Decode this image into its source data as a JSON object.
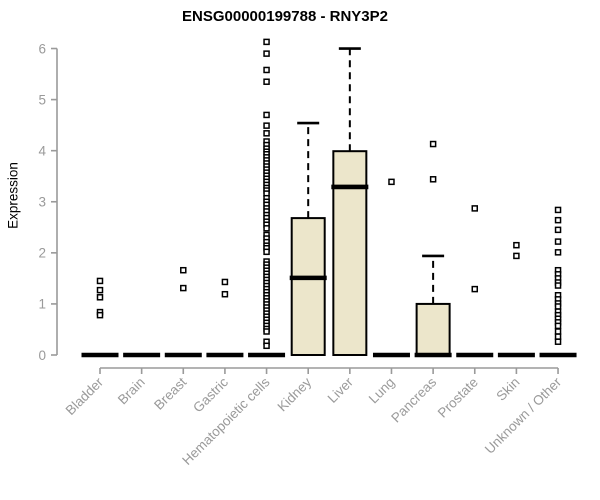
{
  "chart_data": {
    "type": "boxplot",
    "title": "ENSG00000199788 - RNY3P2",
    "ylabel": "Expression",
    "xlabel": "",
    "ylim": [
      0,
      6
    ],
    "yticks": [
      0,
      1,
      2,
      3,
      4,
      5,
      6
    ],
    "grid": false,
    "legend": "none",
    "colors": {
      "box_fill": "#ece6cb",
      "box_stroke": "#000000",
      "median": "#000000",
      "whisker": "#000000",
      "outlier_stroke": "#000000",
      "outlier_fill": "#ffffff",
      "axis": "#9a9a9a",
      "tick_label": "#9a9a9a",
      "title": "#000000"
    },
    "categories": [
      "Bladder",
      "Brain",
      "Breast",
      "Gastric",
      "Hematopoietic cells",
      "Kidney",
      "Liver",
      "Lung",
      "Pancreas",
      "Prostate",
      "Skin",
      "Unknown / Other"
    ],
    "series": [
      {
        "category": "Bladder",
        "q1": 0,
        "median": 0,
        "q3": 0,
        "whisker_low": 0,
        "whisker_high": 0,
        "outliers": [
          1.45,
          1.27,
          1.13,
          0.84,
          0.78
        ]
      },
      {
        "category": "Brain",
        "q1": 0,
        "median": 0,
        "q3": 0,
        "whisker_low": 0,
        "whisker_high": 0,
        "outliers": []
      },
      {
        "category": "Breast",
        "q1": 0,
        "median": 0,
        "q3": 0,
        "whisker_low": 0,
        "whisker_high": 0,
        "outliers": [
          1.66,
          1.31
        ]
      },
      {
        "category": "Gastric",
        "q1": 0,
        "median": 0,
        "q3": 0,
        "whisker_low": 0,
        "whisker_high": 0,
        "outliers": [
          1.43,
          1.19
        ]
      },
      {
        "category": "Hematopoietic cells",
        "q1": 0,
        "median": 0,
        "q3": 0,
        "whisker_low": 0,
        "whisker_high": 0,
        "outliers": [
          6.13,
          5.9,
          5.58,
          5.35,
          4.7,
          4.49,
          4.34,
          4.18,
          4.11,
          4.04,
          3.98,
          3.93,
          3.87,
          3.81,
          3.75,
          3.69,
          3.63,
          3.57,
          3.51,
          3.45,
          3.39,
          3.33,
          3.27,
          3.22,
          3.16,
          3.07,
          3.0,
          2.94,
          2.87,
          2.81,
          2.74,
          2.68,
          2.61,
          2.55,
          2.48,
          2.35,
          2.28,
          2.21,
          2.14,
          2.09,
          2.02,
          1.83,
          1.77,
          1.71,
          1.65,
          1.59,
          1.53,
          1.47,
          1.41,
          1.35,
          1.29,
          1.23,
          1.17,
          1.11,
          1.05,
          0.99,
          0.93,
          0.87,
          0.81,
          0.75,
          0.69,
          0.63,
          0.57,
          0.51,
          0.46,
          0.26,
          0.18
        ]
      },
      {
        "category": "Kidney",
        "q1": 0,
        "median": 1.51,
        "q3": 2.68,
        "whisker_low": 0,
        "whisker_high": 4.54,
        "outliers": []
      },
      {
        "category": "Liver",
        "q1": 0,
        "median": 3.29,
        "q3": 3.99,
        "whisker_low": 0,
        "whisker_high": 6.0,
        "outliers": []
      },
      {
        "category": "Lung",
        "q1": 0,
        "median": 0,
        "q3": 0,
        "whisker_low": 0,
        "whisker_high": 0,
        "outliers": [
          3.39
        ]
      },
      {
        "category": "Pancreas",
        "q1": 0,
        "median": 0,
        "q3": 1.0,
        "whisker_low": 0,
        "whisker_high": 1.94,
        "outliers": [
          4.13,
          3.44
        ]
      },
      {
        "category": "Prostate",
        "q1": 0,
        "median": 0,
        "q3": 0,
        "whisker_low": 0,
        "whisker_high": 0,
        "outliers": [
          2.87,
          1.29
        ]
      },
      {
        "category": "Skin",
        "q1": 0,
        "median": 0,
        "q3": 0,
        "whisker_low": 0,
        "whisker_high": 0,
        "outliers": [
          2.15,
          1.94
        ]
      },
      {
        "category": "Unknown / Other",
        "q1": 0,
        "median": 0,
        "q3": 0,
        "whisker_low": 0,
        "whisker_high": 0,
        "outliers": [
          2.84,
          2.64,
          2.45,
          2.22,
          2.01,
          1.66,
          1.58,
          1.5,
          1.42,
          1.36,
          1.17,
          1.09,
          1.01,
          0.95,
          0.85,
          0.78,
          0.71,
          0.64,
          0.57,
          0.46,
          0.36,
          0.26
        ]
      }
    ]
  }
}
